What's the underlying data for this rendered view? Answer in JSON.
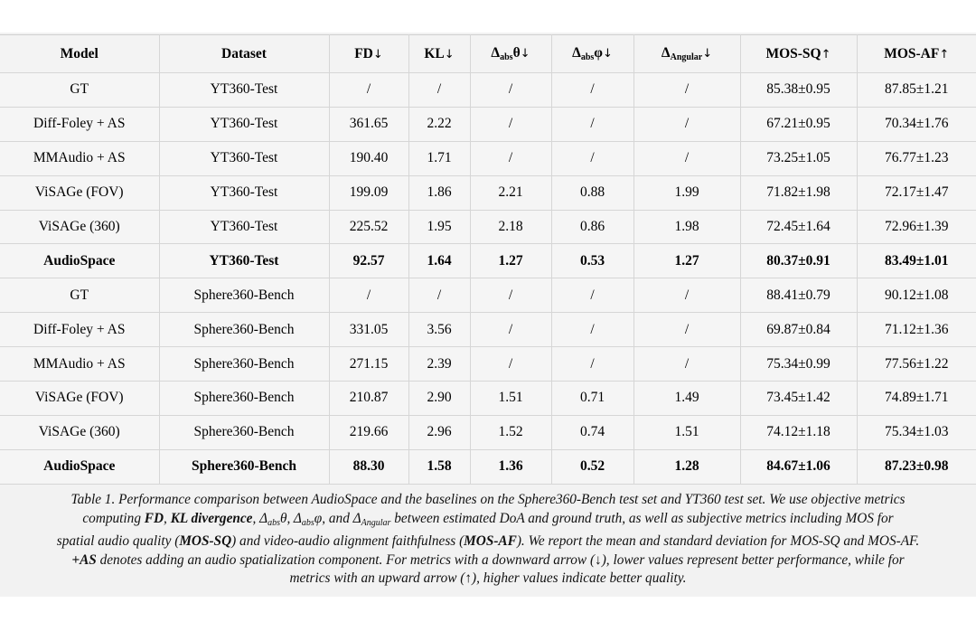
{
  "table": {
    "headers": [
      "Model",
      "Dataset",
      "FD↓",
      "KL↓",
      "Δabsθ↓",
      "Δabsφ↓",
      "ΔAngular↓",
      "MOS-SQ↑",
      "MOS-AF↑"
    ],
    "rows": [
      {
        "bold": false,
        "cells": [
          "GT",
          "YT360-Test",
          "/",
          "/",
          "/",
          "/",
          "/",
          "85.38±0.95",
          "87.85±1.21"
        ]
      },
      {
        "bold": false,
        "cells": [
          "Diff-Foley + AS",
          "YT360-Test",
          "361.65",
          "2.22",
          "/",
          "/",
          "/",
          "67.21±0.95",
          "70.34±1.76"
        ]
      },
      {
        "bold": false,
        "cells": [
          "MMAudio + AS",
          "YT360-Test",
          "190.40",
          "1.71",
          "/",
          "/",
          "/",
          "73.25±1.05",
          "76.77±1.23"
        ]
      },
      {
        "bold": false,
        "cells": [
          "ViSAGe (FOV)",
          "YT360-Test",
          "199.09",
          "1.86",
          "2.21",
          "0.88",
          "1.99",
          "71.82±1.98",
          "72.17±1.47"
        ]
      },
      {
        "bold": false,
        "cells": [
          "ViSAGe (360)",
          "YT360-Test",
          "225.52",
          "1.95",
          "2.18",
          "0.86",
          "1.98",
          "72.45±1.64",
          "72.96±1.39"
        ]
      },
      {
        "bold": true,
        "cells": [
          "AudioSpace",
          "YT360-Test",
          "92.57",
          "1.64",
          "1.27",
          "0.53",
          "1.27",
          "80.37±0.91",
          "83.49±1.01"
        ]
      },
      {
        "bold": false,
        "cells": [
          "GT",
          "Sphere360-Bench",
          "/",
          "/",
          "/",
          "/",
          "/",
          "88.41±0.79",
          "90.12±1.08"
        ]
      },
      {
        "bold": false,
        "cells": [
          "Diff-Foley + AS",
          "Sphere360-Bench",
          "331.05",
          "3.56",
          "/",
          "/",
          "/",
          "69.87±0.84",
          "71.12±1.36"
        ]
      },
      {
        "bold": false,
        "cells": [
          "MMAudio + AS",
          "Sphere360-Bench",
          "271.15",
          "2.39",
          "/",
          "/",
          "/",
          "75.34±0.99",
          "77.56±1.22"
        ]
      },
      {
        "bold": false,
        "cells": [
          "ViSAGe (FOV)",
          "Sphere360-Bench",
          "210.87",
          "2.90",
          "1.51",
          "0.71",
          "1.49",
          "73.45±1.42",
          "74.89±1.71"
        ]
      },
      {
        "bold": false,
        "cells": [
          "ViSAGe (360)",
          "Sphere360-Bench",
          "219.66",
          "2.96",
          "1.52",
          "0.74",
          "1.51",
          "74.12±1.18",
          "75.34±1.03"
        ]
      },
      {
        "bold": true,
        "cells": [
          "AudioSpace",
          "Sphere360-Bench",
          "88.30",
          "1.58",
          "1.36",
          "0.52",
          "1.28",
          "84.67±1.06",
          "87.23±0.98"
        ]
      }
    ]
  },
  "caption": {
    "lines": [
      "Table 1. Performance comparison between AudioSpace and the baselines on the Sphere360-Bench test set and YT360 test set. We use objective metrics",
      "computing FD, KL divergence, Δabsθ, Δabsφ, and ΔAngular between estimated DoA and ground truth, as well as subjective metrics including MOS for",
      "spatial audio quality (MOS-SQ) and video-audio alignment faithfulness (MOS-AF). We report the mean and standard deviation for MOS-SQ and MOS-AF.",
      "+AS denotes adding an audio spatialization component. For metrics with a downward arrow (↓), lower values represent better performance, while for",
      "metrics with an upward arrow (↑), higher values indicate better quality."
    ]
  }
}
